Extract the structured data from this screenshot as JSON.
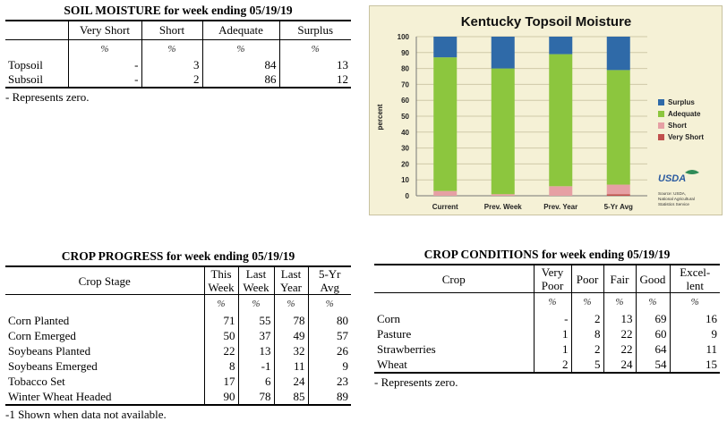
{
  "soil_moisture": {
    "title": "SOIL MOISTURE for week ending 05/19/19",
    "columns": [
      "Very Short",
      "Short",
      "Adequate",
      "Surplus"
    ],
    "units": [
      "%",
      "%",
      "%",
      "%"
    ],
    "rows": [
      {
        "label": "Topsoil",
        "values": [
          "-",
          "3",
          "84",
          "13"
        ]
      },
      {
        "label": "Subsoil",
        "values": [
          "-",
          "2",
          "86",
          "12"
        ]
      }
    ],
    "note": "- Represents zero."
  },
  "crop_progress": {
    "title": "CROP PROGRESS for week ending 05/19/19",
    "stage_header": "Crop Stage",
    "columns": [
      [
        "This",
        "Week"
      ],
      [
        "Last",
        "Week"
      ],
      [
        "Last",
        "Year"
      ],
      [
        "5-Yr",
        "Avg"
      ]
    ],
    "units": [
      "%",
      "%",
      "%",
      "%"
    ],
    "rows": [
      {
        "label": "Corn Planted",
        "values": [
          "71",
          "55",
          "78",
          "80"
        ]
      },
      {
        "label": "Corn Emerged",
        "values": [
          "50",
          "37",
          "49",
          "57"
        ]
      },
      {
        "label": "Soybeans Planted",
        "values": [
          "22",
          "13",
          "32",
          "26"
        ]
      },
      {
        "label": "Soybeans Emerged",
        "values": [
          "8",
          "-1",
          "11",
          "9"
        ]
      },
      {
        "label": "Tobacco Set",
        "values": [
          "17",
          "6",
          "24",
          "23"
        ]
      },
      {
        "label": "Winter Wheat Headed",
        "values": [
          "90",
          "78",
          "85",
          "89"
        ]
      }
    ],
    "note": "-1 Shown when data not available."
  },
  "crop_conditions": {
    "title": "CROP CONDITIONS for week ending 05/19/19",
    "crop_header": "Crop",
    "columns": [
      [
        "Very",
        "Poor"
      ],
      [
        "Poor"
      ],
      [
        "Fair"
      ],
      [
        "Good"
      ],
      [
        "Excel-",
        "lent"
      ]
    ],
    "units": [
      "%",
      "%",
      "%",
      "%",
      "%"
    ],
    "rows": [
      {
        "label": "Corn",
        "values": [
          "-",
          "2",
          "13",
          "69",
          "16"
        ]
      },
      {
        "label": "Pasture",
        "values": [
          "1",
          "8",
          "22",
          "60",
          "9"
        ]
      },
      {
        "label": "Strawberries",
        "values": [
          "1",
          "2",
          "22",
          "64",
          "11"
        ]
      },
      {
        "label": "Wheat",
        "values": [
          "2",
          "5",
          "24",
          "54",
          "15"
        ]
      }
    ],
    "note": "- Represents zero."
  },
  "chart_data": {
    "type": "bar",
    "stacked": true,
    "title": "Kentucky Topsoil Moisture",
    "ylabel": "percent",
    "ylim": [
      0,
      100
    ],
    "yticks": [
      0,
      10,
      20,
      30,
      40,
      50,
      60,
      70,
      80,
      90,
      100
    ],
    "categories": [
      "Current",
      "Prev. Week",
      "Prev. Year",
      "5-Yr Avg"
    ],
    "series": [
      {
        "name": "Very Short",
        "color": "#c0504d",
        "values": [
          0,
          0,
          0,
          1
        ]
      },
      {
        "name": "Short",
        "color": "#e6a0a4",
        "values": [
          3,
          1,
          6,
          6
        ]
      },
      {
        "name": "Adequate",
        "color": "#8cc63e",
        "values": [
          84,
          79,
          83,
          72
        ]
      },
      {
        "name": "Surplus",
        "color": "#2f6aa8",
        "values": [
          13,
          20,
          11,
          21
        ]
      }
    ],
    "legend_order": [
      "Surplus",
      "Adequate",
      "Short",
      "Very Short"
    ],
    "legend_position": "right",
    "logo_text": "USDA",
    "source_lines": [
      "Source: USDA,",
      "National Agricultural",
      "Statistics Service"
    ]
  }
}
